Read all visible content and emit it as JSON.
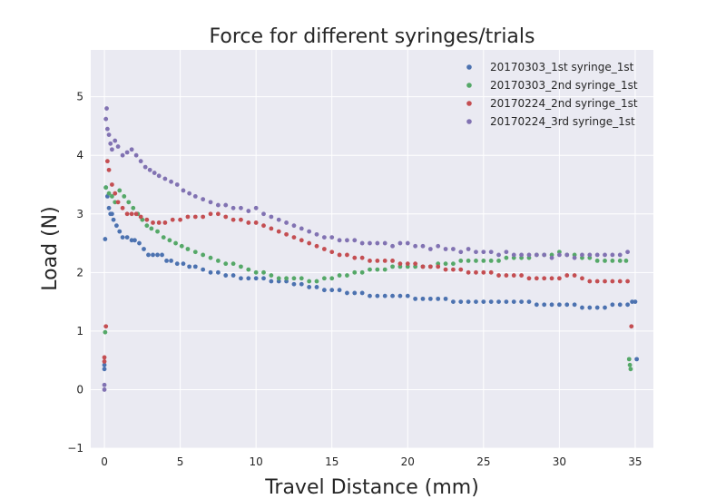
{
  "chart_data": {
    "type": "scatter",
    "title": "Force for different syringes/trials",
    "xlabel": "Travel Distance (mm)",
    "ylabel": "Load (N)",
    "xlim": [
      -0.9,
      36.2
    ],
    "ylim": [
      -1,
      5.8
    ],
    "xticks": [
      0,
      5,
      10,
      15,
      20,
      25,
      30,
      35
    ],
    "yticks": [
      -1,
      0,
      1,
      2,
      3,
      4,
      5
    ],
    "grid": true,
    "legend_position": "top-right",
    "series": [
      {
        "name": "20170303_1st syringe_1st",
        "color": "#4c72b0",
        "x": [
          0,
          0,
          0.05,
          0.1,
          0.2,
          0.3,
          0.4,
          0.5,
          0.6,
          0.8,
          1.0,
          1.2,
          1.5,
          1.8,
          2.0,
          2.3,
          2.6,
          2.9,
          3.2,
          3.5,
          3.8,
          4.1,
          4.4,
          4.8,
          5.2,
          5.6,
          6.0,
          6.5,
          7.0,
          7.5,
          8.0,
          8.5,
          9.0,
          9.5,
          10.0,
          10.5,
          11.0,
          11.5,
          12.0,
          12.5,
          13.0,
          13.5,
          14.0,
          14.5,
          15.0,
          15.5,
          16.0,
          16.5,
          17.0,
          17.5,
          18.0,
          18.5,
          19.0,
          19.5,
          20.0,
          20.5,
          21.0,
          21.5,
          22.0,
          22.5,
          23.0,
          23.5,
          24.0,
          24.5,
          25.0,
          25.5,
          26.0,
          26.5,
          27.0,
          27.5,
          28.0,
          28.5,
          29.0,
          29.5,
          30.0,
          30.5,
          31.0,
          31.5,
          32.0,
          32.5,
          33.0,
          33.5,
          34.0,
          34.5,
          34.8,
          35.0,
          35.1
        ],
        "y": [
          0.35,
          0.42,
          2.57,
          3.45,
          3.3,
          3.1,
          3.0,
          3.0,
          2.9,
          2.8,
          2.7,
          2.6,
          2.6,
          2.55,
          2.55,
          2.5,
          2.4,
          2.3,
          2.3,
          2.3,
          2.3,
          2.2,
          2.2,
          2.15,
          2.15,
          2.1,
          2.1,
          2.05,
          2.0,
          2.0,
          1.95,
          1.95,
          1.9,
          1.9,
          1.9,
          1.9,
          1.85,
          1.85,
          1.85,
          1.8,
          1.8,
          1.75,
          1.75,
          1.7,
          1.7,
          1.7,
          1.65,
          1.65,
          1.65,
          1.6,
          1.6,
          1.6,
          1.6,
          1.6,
          1.6,
          1.55,
          1.55,
          1.55,
          1.55,
          1.55,
          1.5,
          1.5,
          1.5,
          1.5,
          1.5,
          1.5,
          1.5,
          1.5,
          1.5,
          1.5,
          1.5,
          1.45,
          1.45,
          1.45,
          1.45,
          1.45,
          1.45,
          1.4,
          1.4,
          1.4,
          1.4,
          1.45,
          1.45,
          1.45,
          1.5,
          1.5,
          0.52
        ]
      },
      {
        "name": "20170303_2nd syringe_1st",
        "color": "#55a868",
        "x": [
          0.05,
          0.1,
          0.3,
          0.5,
          0.7,
          1.0,
          1.3,
          1.6,
          1.9,
          2.2,
          2.5,
          2.8,
          3.1,
          3.5,
          3.9,
          4.3,
          4.7,
          5.1,
          5.5,
          6.0,
          6.5,
          7.0,
          7.5,
          8.0,
          8.5,
          9.0,
          9.5,
          10.0,
          10.5,
          11.0,
          11.5,
          12.0,
          12.5,
          13.0,
          13.5,
          14.0,
          14.5,
          15.0,
          15.5,
          16.0,
          16.5,
          17.0,
          17.5,
          18.0,
          18.5,
          19.0,
          19.5,
          20.0,
          20.5,
          21.0,
          21.5,
          22.0,
          22.5,
          23.0,
          23.5,
          24.0,
          24.5,
          25.0,
          25.5,
          26.0,
          26.5,
          27.0,
          27.5,
          28.0,
          28.5,
          29.0,
          29.5,
          30.0,
          30.5,
          31.0,
          31.5,
          32.0,
          32.5,
          33.0,
          33.5,
          34.0,
          34.4,
          34.6,
          34.65,
          34.7
        ],
        "y": [
          0.98,
          3.45,
          3.35,
          3.3,
          3.2,
          3.4,
          3.3,
          3.2,
          3.1,
          3.0,
          2.9,
          2.8,
          2.75,
          2.7,
          2.6,
          2.55,
          2.5,
          2.45,
          2.4,
          2.35,
          2.3,
          2.25,
          2.2,
          2.15,
          2.15,
          2.1,
          2.05,
          2.0,
          2.0,
          1.95,
          1.9,
          1.9,
          1.9,
          1.9,
          1.85,
          1.85,
          1.9,
          1.9,
          1.95,
          1.95,
          2.0,
          2.0,
          2.05,
          2.05,
          2.05,
          2.1,
          2.1,
          2.1,
          2.1,
          2.1,
          2.1,
          2.15,
          2.15,
          2.15,
          2.2,
          2.2,
          2.2,
          2.2,
          2.2,
          2.2,
          2.25,
          2.25,
          2.25,
          2.25,
          2.3,
          2.3,
          2.3,
          2.35,
          2.3,
          2.3,
          2.25,
          2.25,
          2.2,
          2.2,
          2.2,
          2.2,
          2.2,
          0.52,
          0.42,
          0.35
        ]
      },
      {
        "name": "20170224_2nd syringe_1st",
        "color": "#c44e52",
        "x": [
          0,
          0,
          0.1,
          0.2,
          0.3,
          0.5,
          0.7,
          0.9,
          1.2,
          1.5,
          1.8,
          2.1,
          2.4,
          2.8,
          3.2,
          3.6,
          4.0,
          4.5,
          5.0,
          5.5,
          6.0,
          6.5,
          7.0,
          7.5,
          8.0,
          8.5,
          9.0,
          9.5,
          10.0,
          10.5,
          11.0,
          11.5,
          12.0,
          12.5,
          13.0,
          13.5,
          14.0,
          14.5,
          15.0,
          15.5,
          16.0,
          16.5,
          17.0,
          17.5,
          18.0,
          18.5,
          19.0,
          19.5,
          20.0,
          20.5,
          21.0,
          21.5,
          22.0,
          22.5,
          23.0,
          23.5,
          24.0,
          24.5,
          25.0,
          25.5,
          26.0,
          26.5,
          27.0,
          27.5,
          28.0,
          28.5,
          29.0,
          29.5,
          30.0,
          30.5,
          31.0,
          31.5,
          32.0,
          32.5,
          33.0,
          33.5,
          34.0,
          34.5,
          34.75
        ],
        "y": [
          0.48,
          0.55,
          1.08,
          3.9,
          3.75,
          3.5,
          3.35,
          3.2,
          3.1,
          3.0,
          3.0,
          3.0,
          2.95,
          2.9,
          2.85,
          2.85,
          2.85,
          2.9,
          2.9,
          2.95,
          2.95,
          2.95,
          3.0,
          3.0,
          2.95,
          2.9,
          2.9,
          2.85,
          2.85,
          2.8,
          2.75,
          2.7,
          2.65,
          2.6,
          2.55,
          2.5,
          2.45,
          2.4,
          2.35,
          2.3,
          2.3,
          2.25,
          2.25,
          2.2,
          2.2,
          2.2,
          2.2,
          2.15,
          2.15,
          2.15,
          2.1,
          2.1,
          2.1,
          2.05,
          2.05,
          2.05,
          2.0,
          2.0,
          2.0,
          2.0,
          1.95,
          1.95,
          1.95,
          1.95,
          1.9,
          1.9,
          1.9,
          1.9,
          1.9,
          1.95,
          1.95,
          1.9,
          1.85,
          1.85,
          1.85,
          1.85,
          1.85,
          1.85,
          1.08
        ]
      },
      {
        "name": "20170224_3rd syringe_1st",
        "color": "#8172b2",
        "x": [
          0,
          0,
          0.1,
          0.15,
          0.2,
          0.3,
          0.4,
          0.5,
          0.7,
          0.9,
          1.2,
          1.5,
          1.8,
          2.1,
          2.4,
          2.7,
          3.0,
          3.3,
          3.6,
          4.0,
          4.4,
          4.8,
          5.2,
          5.6,
          6.0,
          6.5,
          7.0,
          7.5,
          8.0,
          8.5,
          9.0,
          9.5,
          10.0,
          10.5,
          11.0,
          11.5,
          12.0,
          12.5,
          13.0,
          13.5,
          14.0,
          14.5,
          15.0,
          15.5,
          16.0,
          16.5,
          17.0,
          17.5,
          18.0,
          18.5,
          19.0,
          19.5,
          20.0,
          20.5,
          21.0,
          21.5,
          22.0,
          22.5,
          23.0,
          23.5,
          24.0,
          24.5,
          25.0,
          25.5,
          26.0,
          26.5,
          27.0,
          27.5,
          28.0,
          28.5,
          29.0,
          29.5,
          30.0,
          30.5,
          31.0,
          31.5,
          32.0,
          32.5,
          33.0,
          33.5,
          34.0,
          34.5
        ],
        "y": [
          0.0,
          0.08,
          4.62,
          4.8,
          4.45,
          4.35,
          4.2,
          4.1,
          4.25,
          4.15,
          4.0,
          4.05,
          4.1,
          4.0,
          3.9,
          3.8,
          3.75,
          3.7,
          3.65,
          3.6,
          3.55,
          3.5,
          3.4,
          3.35,
          3.3,
          3.25,
          3.2,
          3.15,
          3.15,
          3.1,
          3.1,
          3.05,
          3.1,
          3.0,
          2.95,
          2.9,
          2.85,
          2.8,
          2.75,
          2.7,
          2.65,
          2.6,
          2.6,
          2.55,
          2.55,
          2.55,
          2.5,
          2.5,
          2.5,
          2.5,
          2.45,
          2.5,
          2.5,
          2.45,
          2.45,
          2.4,
          2.45,
          2.4,
          2.4,
          2.35,
          2.4,
          2.35,
          2.35,
          2.35,
          2.3,
          2.35,
          2.3,
          2.3,
          2.3,
          2.3,
          2.3,
          2.25,
          2.3,
          2.3,
          2.25,
          2.3,
          2.3,
          2.3,
          2.3,
          2.3,
          2.3,
          2.35
        ]
      }
    ]
  }
}
